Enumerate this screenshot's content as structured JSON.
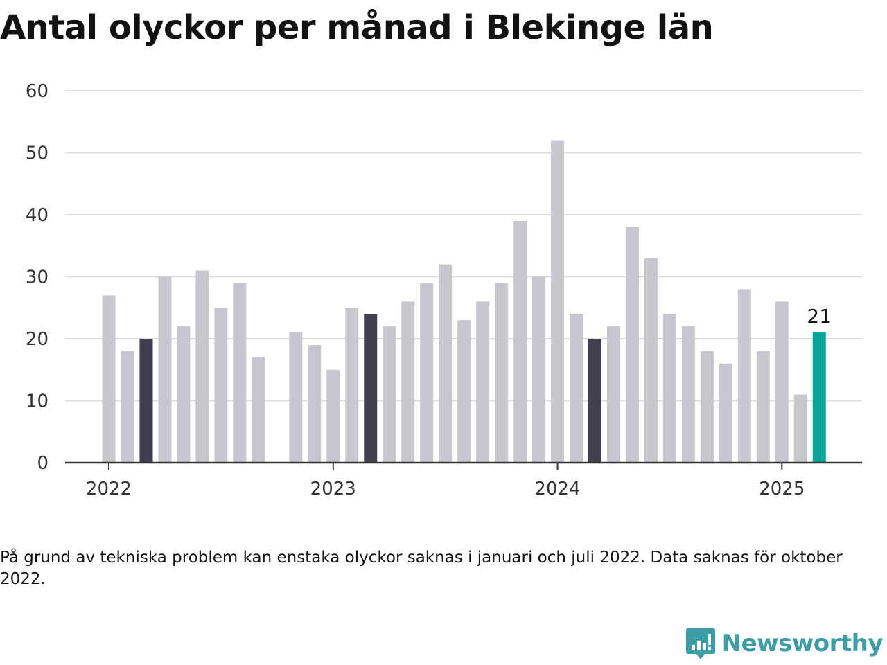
{
  "title": "Antal olyckor per månad i Blekinge län",
  "note": "På grund av tekniska problem kan enstaka olyckor saknas i januari och juli 2022. Data saknas för oktober 2022.",
  "brand": {
    "name": "Newsworthy",
    "icon": "bar-chart-speech-bubble-icon",
    "color": "#3b9da6"
  },
  "colors": {
    "default_bar": "#c8c7d0",
    "highlight_bar": "#3f3f4f",
    "latest_bar": "#0aa59a",
    "grid": "#dddddd",
    "axis": "#333333"
  },
  "chart_data": {
    "type": "bar",
    "title": "Antal olyckor per månad i Blekinge län",
    "xlabel": "",
    "ylabel": "",
    "ylim": [
      0,
      60
    ],
    "yticks": [
      0,
      10,
      20,
      30,
      40,
      50,
      60
    ],
    "xticks": [
      "2022",
      "2023",
      "2024",
      "2025"
    ],
    "grid": true,
    "legend": "none",
    "categories": [
      "2022-01",
      "2022-02",
      "2022-03",
      "2022-04",
      "2022-05",
      "2022-06",
      "2022-07",
      "2022-08",
      "2022-09",
      "2022-10",
      "2022-11",
      "2022-12",
      "2023-01",
      "2023-02",
      "2023-03",
      "2023-04",
      "2023-05",
      "2023-06",
      "2023-07",
      "2023-08",
      "2023-09",
      "2023-10",
      "2023-11",
      "2023-12",
      "2024-01",
      "2024-02",
      "2024-03",
      "2024-04",
      "2024-05",
      "2024-06",
      "2024-07",
      "2024-08",
      "2024-09",
      "2024-10",
      "2024-11",
      "2024-12",
      "2025-01",
      "2025-02",
      "2025-03"
    ],
    "values": [
      27,
      18,
      20,
      30,
      22,
      31,
      25,
      29,
      17,
      null,
      21,
      19,
      15,
      25,
      24,
      22,
      26,
      29,
      32,
      23,
      26,
      29,
      39,
      30,
      52,
      24,
      20,
      22,
      38,
      33,
      24,
      22,
      18,
      16,
      28,
      18,
      26,
      11,
      21
    ],
    "highlighted": [
      "2022-03",
      "2023-03",
      "2024-03"
    ],
    "latest": "2025-03",
    "annotations": [
      {
        "category": "2025-03",
        "text": "21"
      }
    ]
  }
}
